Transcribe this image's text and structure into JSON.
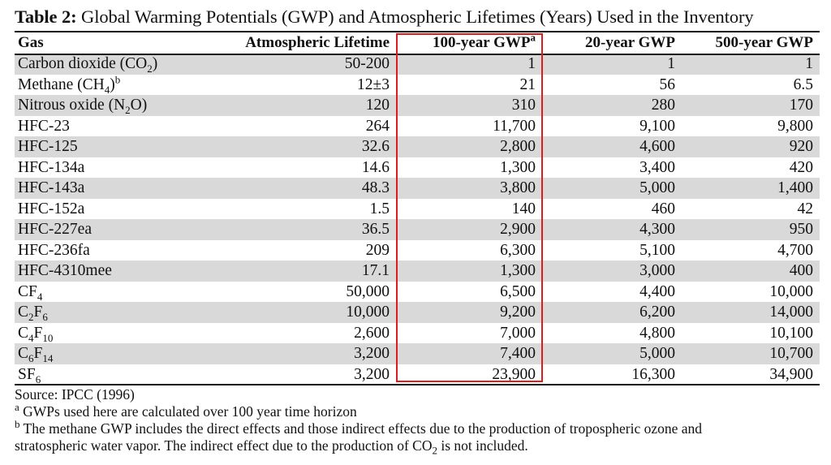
{
  "title": {
    "bold": "Table 2:",
    "text": " Global Warming Potentials (GWP) and Atmospheric Lifetimes (Years) Used in the Inventory"
  },
  "headers": {
    "gas": "Gas",
    "lifetime": "Atmospheric Lifetime",
    "gwp100": "100-year GWP",
    "gwp100_note": "a",
    "gwp20": "20-year GWP",
    "gwp500": "500-year GWP"
  },
  "rows": [
    {
      "pre": "Carbon dioxide (CO",
      "sub": "2",
      "post": ")",
      "sup": "",
      "lifetime": "50-200",
      "gwp100": "1",
      "gwp20": "1",
      "gwp500": "1"
    },
    {
      "pre": "Methane (CH",
      "sub": "4",
      "post": ")",
      "sup": "b",
      "lifetime": "12±3",
      "gwp100": "21",
      "gwp20": "56",
      "gwp500": "6.5"
    },
    {
      "pre": "Nitrous oxide (N",
      "sub": "2",
      "post": "O)",
      "sup": "",
      "lifetime": "120",
      "gwp100": "310",
      "gwp20": "280",
      "gwp500": "170"
    },
    {
      "pre": "HFC-23",
      "sub": "",
      "post": "",
      "sup": "",
      "lifetime": "264",
      "gwp100": "11,700",
      "gwp20": "9,100",
      "gwp500": "9,800"
    },
    {
      "pre": "HFC-125",
      "sub": "",
      "post": "",
      "sup": "",
      "lifetime": "32.6",
      "gwp100": "2,800",
      "gwp20": "4,600",
      "gwp500": "920"
    },
    {
      "pre": "HFC-134a",
      "sub": "",
      "post": "",
      "sup": "",
      "lifetime": "14.6",
      "gwp100": "1,300",
      "gwp20": "3,400",
      "gwp500": "420"
    },
    {
      "pre": "HFC-143a",
      "sub": "",
      "post": "",
      "sup": "",
      "lifetime": "48.3",
      "gwp100": "3,800",
      "gwp20": "5,000",
      "gwp500": "1,400"
    },
    {
      "pre": "HFC-152a",
      "sub": "",
      "post": "",
      "sup": "",
      "lifetime": "1.5",
      "gwp100": "140",
      "gwp20": "460",
      "gwp500": "42"
    },
    {
      "pre": "HFC-227ea",
      "sub": "",
      "post": "",
      "sup": "",
      "lifetime": "36.5",
      "gwp100": "2,900",
      "gwp20": "4,300",
      "gwp500": "950"
    },
    {
      "pre": "HFC-236fa",
      "sub": "",
      "post": "",
      "sup": "",
      "lifetime": "209",
      "gwp100": "6,300",
      "gwp20": "5,100",
      "gwp500": "4,700"
    },
    {
      "pre": "HFC-4310mee",
      "sub": "",
      "post": "",
      "sup": "",
      "lifetime": "17.1",
      "gwp100": "1,300",
      "gwp20": "3,000",
      "gwp500": "400"
    },
    {
      "pre": "CF",
      "sub": "4",
      "post": "",
      "sup": "",
      "lifetime": "50,000",
      "gwp100": "6,500",
      "gwp20": "4,400",
      "gwp500": "10,000"
    },
    {
      "pre": "C",
      "sub": "2",
      "post": "F",
      "sub2": "6",
      "sup": "",
      "lifetime": "10,000",
      "gwp100": "9,200",
      "gwp20": "6,200",
      "gwp500": "14,000"
    },
    {
      "pre": "C",
      "sub": "4",
      "post": "F",
      "sub2": "10",
      "sup": "",
      "lifetime": "2,600",
      "gwp100": "7,000",
      "gwp20": "4,800",
      "gwp500": "10,100"
    },
    {
      "pre": "C",
      "sub": "6",
      "post": "F",
      "sub2": "14",
      "sup": "",
      "lifetime": "3,200",
      "gwp100": "7,400",
      "gwp20": "5,000",
      "gwp500": "10,700"
    },
    {
      "pre": "SF",
      "sub": "6",
      "post": "",
      "sup": "",
      "lifetime": "3,200",
      "gwp100": "23,900",
      "gwp20": "16,300",
      "gwp500": "34,900"
    }
  ],
  "notes": {
    "source": "Source:  IPCC (1996)",
    "a_mark": "a",
    "a_text": " GWPs used here are calculated over 100 year time horizon",
    "b_mark": "b",
    "b_text": " The methane GWP includes the direct effects and those indirect effects due to the production of tropospheric ozone and",
    "b_line2_pre": "stratospheric water vapor.  The indirect effect due to the production of CO",
    "b_line2_sub": "2",
    "b_line2_post": " is not included."
  },
  "colors": {
    "row_shade": "#d9d9d9",
    "highlight_border": "#e01b1b"
  }
}
